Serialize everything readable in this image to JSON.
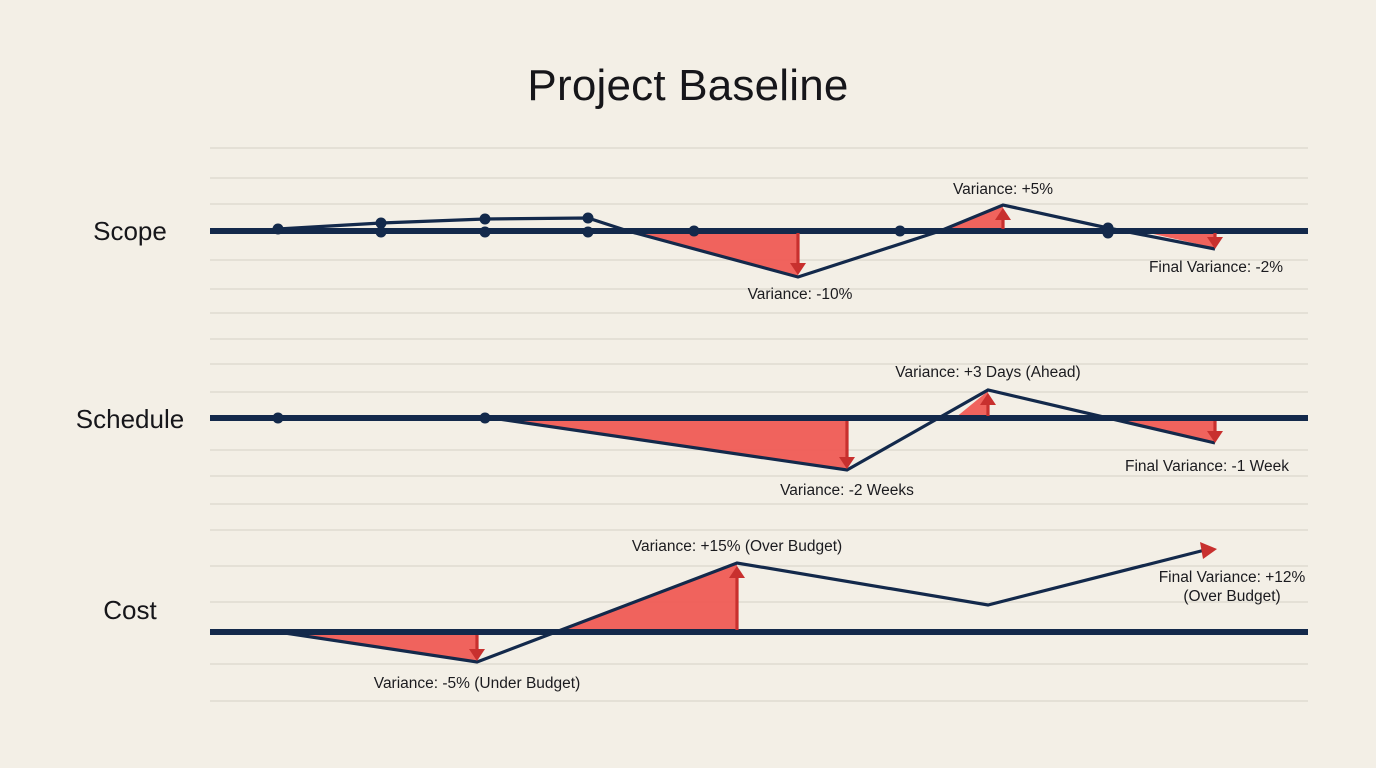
{
  "title": "Project Baseline",
  "colors": {
    "background": "#f3efe6",
    "line": "#13294b",
    "variance_fill": "#ef5b55",
    "arrow": "#c8302e",
    "grid": "#dcd7cc"
  },
  "rows": [
    {
      "key": "scope",
      "label": "Scope",
      "annotations": [
        {
          "id": "v1",
          "text": "Variance: +5%"
        },
        {
          "id": "v2",
          "text": "Variance: -10%"
        },
        {
          "id": "v3",
          "text": "Final Variance: -2%"
        }
      ]
    },
    {
      "key": "schedule",
      "label": "Schedule",
      "annotations": [
        {
          "id": "v1",
          "text": "Variance: +3 Days (Ahead)"
        },
        {
          "id": "v2",
          "text": "Variance: -2 Weeks"
        },
        {
          "id": "v3",
          "text": "Final Variance: -1 Week"
        }
      ]
    },
    {
      "key": "cost",
      "label": "Cost",
      "annotations": [
        {
          "id": "v1",
          "text": "Variance: +15% (Over Budget)"
        },
        {
          "id": "v2",
          "text": "Variance: -5% (Under Budget)"
        },
        {
          "id": "v3a",
          "text": "Final Variance: +12%"
        },
        {
          "id": "v3b",
          "text": "(Over Budget)"
        }
      ]
    }
  ]
}
